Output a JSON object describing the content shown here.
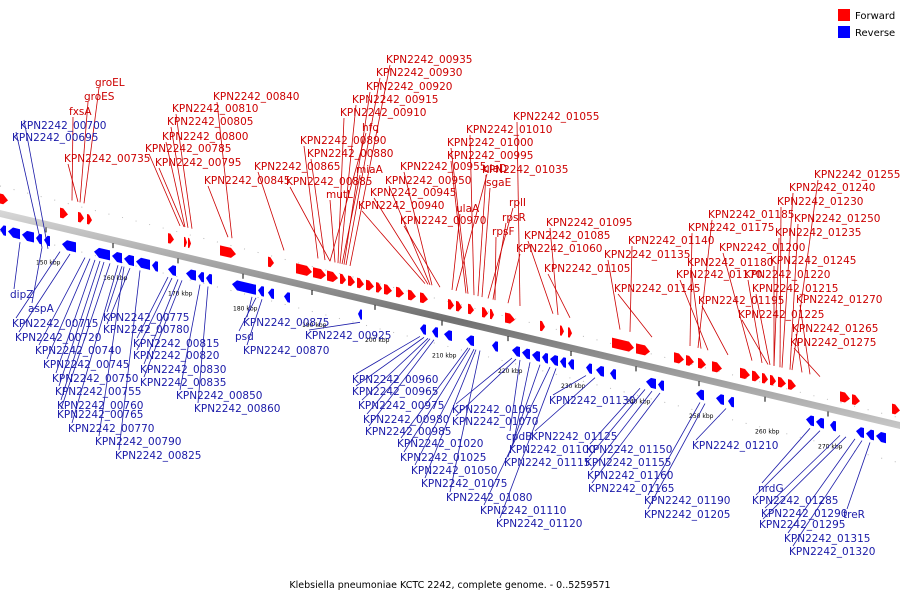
{
  "colors": {
    "forward": "#ff0000",
    "reverse": "#0000ff",
    "forward_label": "#cc0000",
    "reverse_label": "#1a1aa8",
    "backbone": "#808080"
  },
  "legend": {
    "forward_label": "Forward",
    "reverse_label": "Reverse"
  },
  "caption": "Klebsiella pneumoniae KCTC 2242, complete genome. - 0..5259571",
  "axis": {
    "ticks": [
      "150 kbp",
      "160 kbp",
      "170 kbp",
      "180 kbp",
      "190 kbp",
      "200 kbp",
      "210 kbp",
      "220 kbp",
      "230 kbp",
      "240 kbp",
      "250 kbp",
      "260 kbp",
      "270 kbp"
    ]
  },
  "forward_genes": [
    "groEL",
    "groES",
    "fxsA",
    "KPN2242_00735",
    "KPN2242_00840",
    "KPN2242_00810",
    "KPN2242_00805",
    "KPN2242_00800",
    "KPN2242_00785",
    "KPN2242_00795",
    "KPN2242_00845",
    "KPN2242_00865",
    "KPN2242_00935",
    "KPN2242_00930",
    "KPN2242_00920",
    "KPN2242_00915",
    "KPN2242_00910",
    "hfq",
    "KPN2242_00890",
    "KPN2242_00880",
    "miaA",
    "KPN2242_00885",
    "mutL",
    "KPN2242_00955",
    "KPN2242_00950",
    "KPN2242_00945",
    "KPN2242_00940",
    "KPN2242_00970",
    "KPN2242_01055",
    "KPN2242_01010",
    "KPN2242_01000",
    "KPN2242_00995",
    "ulaD",
    "ulaA",
    "KPN2242_01035",
    "sgaE",
    "rplI",
    "rpsR",
    "rpsF",
    "KPN2242_01060",
    "KPN2242_01095",
    "KPN2242_01085",
    "KPN2242_01105",
    "KPN2242_01140",
    "KPN2242_01135",
    "KPN2242_01145",
    "KPN2242_01185",
    "KPN2242_01175",
    "KPN2242_01180",
    "KPN2242_01170",
    "KPN2242_01195",
    "KPN2242_01255",
    "KPN2242_01240",
    "KPN2242_01230",
    "KPN2242_01250",
    "KPN2242_01235",
    "KPN2242_01200",
    "KPN2242_01245",
    "KPN2242_01220",
    "KPN2242_01215",
    "KPN2242_01270",
    "KPN2242_01225",
    "KPN2242_01265",
    "KPN2242_01275"
  ],
  "reverse_genes": [
    "KPN2242_00700",
    "KPN2242_00695",
    "dipZ",
    "aspA",
    "KPN2242_00715",
    "KPN2242_00720",
    "KPN2242_00740",
    "KPN2242_00745",
    "KPN2242_00750",
    "KPN2242_00755",
    "KPN2242_00760",
    "KPN2242_00765",
    "KPN2242_00770",
    "KPN2242_00775",
    "KPN2242_00780",
    "KPN2242_00815",
    "KPN2242_00820",
    "KPN2242_00830",
    "KPN2242_00835",
    "KPN2242_00790",
    "KPN2242_00825",
    "KPN2242_00875",
    "psd",
    "KPN2242_00870",
    "KPN2242_00850",
    "KPN2242_00860",
    "KPN2242_00925",
    "KPN2242_00960",
    "KPN2242_00965",
    "KPN2242_00975",
    "KPN2242_00980",
    "KPN2242_00985",
    "KPN2242_01020",
    "KPN2242_01025",
    "KPN2242_01050",
    "KPN2242_01075",
    "KPN2242_01080",
    "KPN2242_01065",
    "KPN2242_01070",
    "cpdB",
    "KPN2242_01100",
    "KPN2242_01115",
    "KPN2242_01110",
    "KPN2242_01120",
    "KPN2242_01130",
    "KPN2242_01125",
    "KPN2242_01150",
    "KPN2242_01155",
    "KPN2242_01160",
    "KPN2242_01165",
    "KPN2242_01190",
    "KPN2242_01205",
    "KPN2242_01210",
    "nrdG",
    "KPN2242_01285",
    "KPN2242_01290",
    "KPN2242_01295",
    "treR",
    "KPN2242_01315",
    "KPN2242_01320"
  ]
}
